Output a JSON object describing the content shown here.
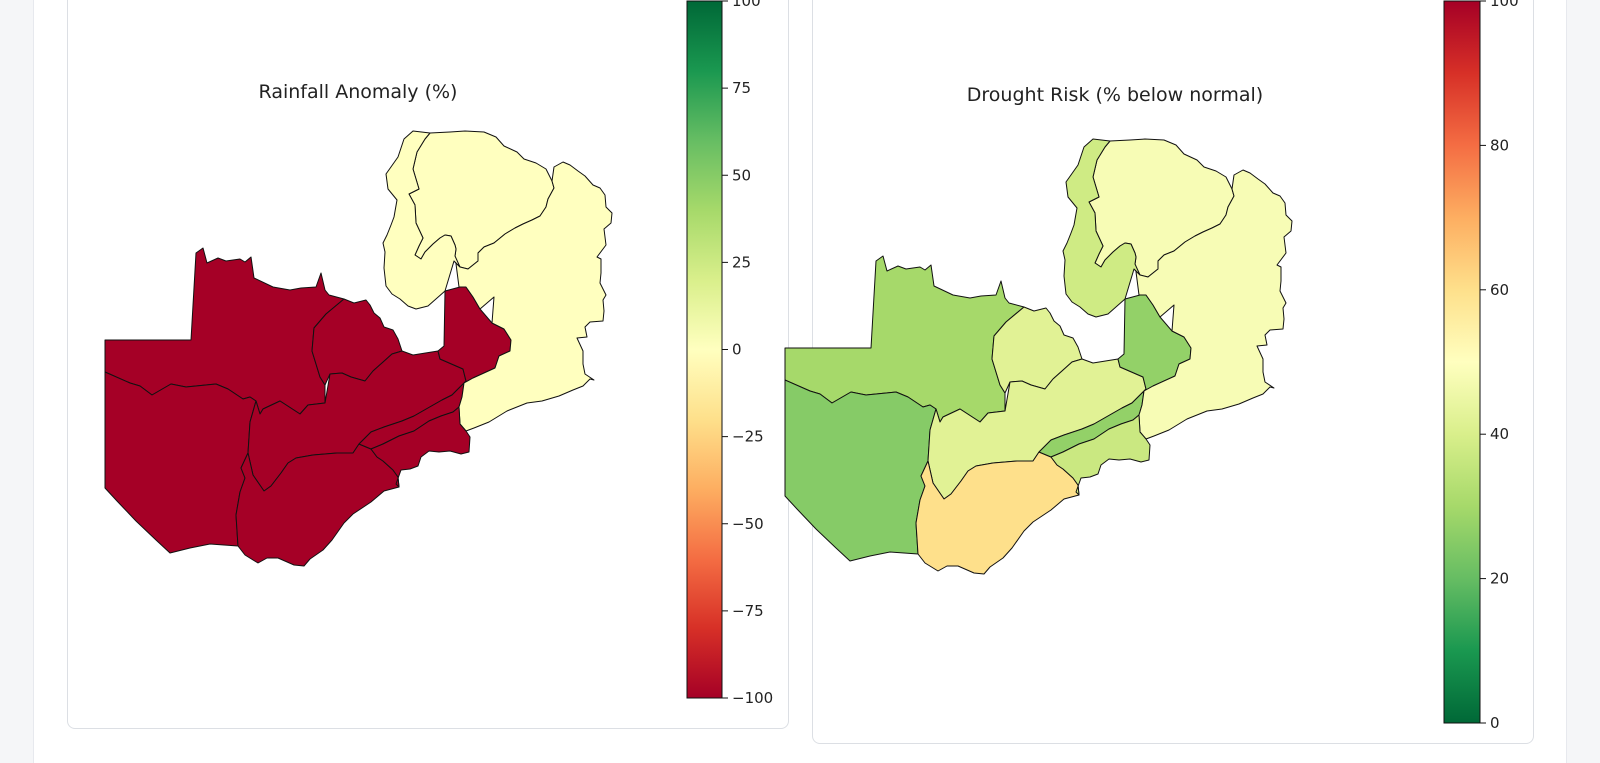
{
  "colors": {
    "ramp": [
      "#006837",
      "#1a9850",
      "#66bd63",
      "#a6d96a",
      "#d9ef8b",
      "#ffffbf",
      "#fee08b",
      "#fdae61",
      "#f46d43",
      "#d73027",
      "#a50026"
    ]
  },
  "maps": [
    {
      "title": "Rainfall Anomaly (%)",
      "colorbar": {
        "colormap": "RdYlGn",
        "range": [
          -100,
          100
        ],
        "ticks": [
          "−100",
          "−75",
          "−50",
          "−25",
          "0",
          "25",
          "50",
          "75",
          "100"
        ]
      },
      "region_values": [
        -100,
        -100,
        -100,
        -100,
        -100,
        -100,
        0,
        0,
        0,
        -100
      ]
    },
    {
      "title": "Drought Risk (% below normal)",
      "colorbar": {
        "colormap": "RdYlGn_r",
        "range": [
          0,
          100
        ],
        "ticks": [
          "0",
          "20",
          "40",
          "60",
          "80",
          "100"
        ]
      },
      "region_values": [
        30,
        25,
        42,
        42,
        60,
        27,
        48,
        48,
        38,
        37
      ]
    }
  ]
}
